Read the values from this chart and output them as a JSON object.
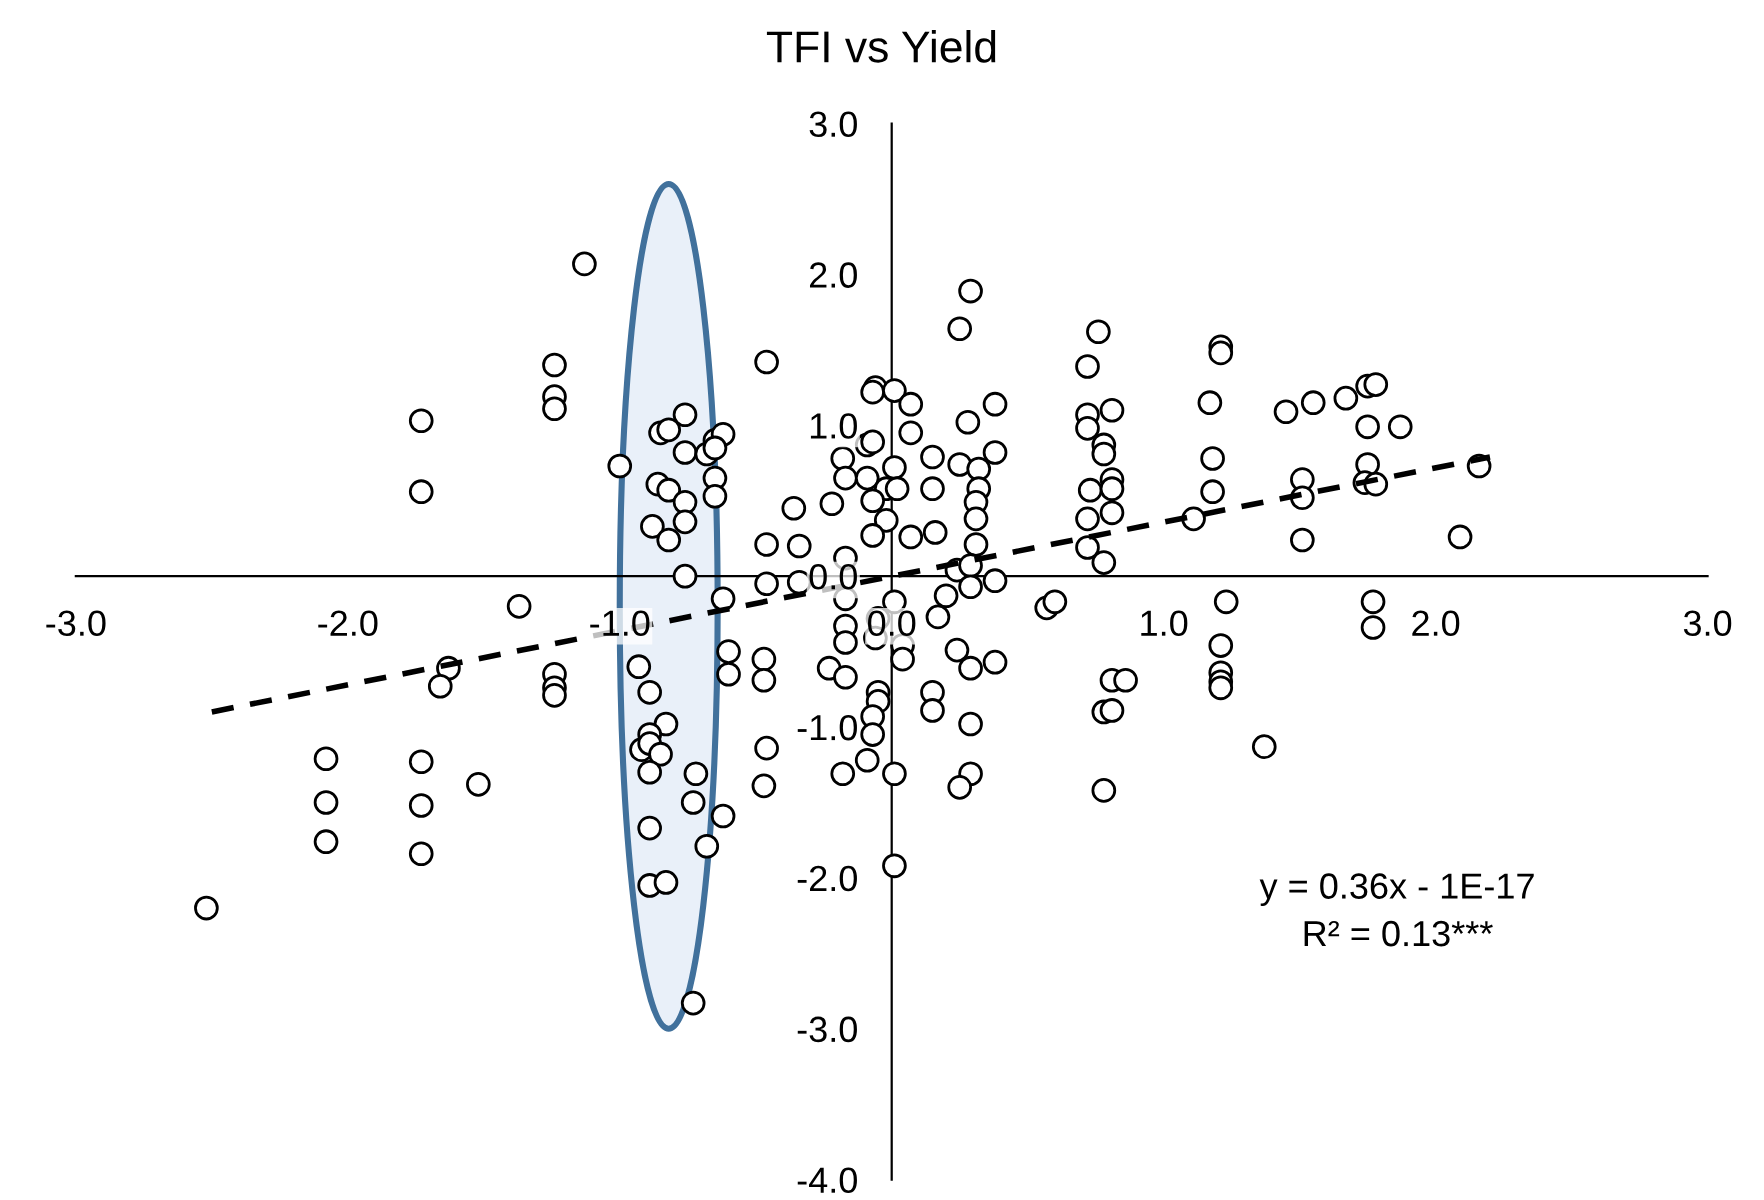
{
  "chart_data": {
    "type": "scatter",
    "title": "TFI vs Yield",
    "xlim": [
      -3,
      3
    ],
    "ylim": [
      -4,
      3
    ],
    "xticks": [
      {
        "value": -3,
        "label": "-3.0"
      },
      {
        "value": -2,
        "label": "-2.0"
      },
      {
        "value": -1,
        "label": "-1.0"
      },
      {
        "value": 0,
        "label": "0.0"
      },
      {
        "value": 1,
        "label": "1.0"
      },
      {
        "value": 2,
        "label": "2.0"
      },
      {
        "value": 3,
        "label": "3.0"
      }
    ],
    "yticks": [
      {
        "value": -4,
        "label": "-4.0"
      },
      {
        "value": -3,
        "label": "-3.0"
      },
      {
        "value": -2,
        "label": "-2.0"
      },
      {
        "value": -1,
        "label": "-1.0"
      },
      {
        "value": 0,
        "label": "0.0"
      },
      {
        "value": 1,
        "label": "1.0"
      },
      {
        "value": 2,
        "label": "2.0"
      },
      {
        "value": 3,
        "label": "3.0"
      }
    ],
    "grid": false,
    "legend": false,
    "marker": "circle",
    "series": [
      {
        "type": "scatter",
        "color": "#000000",
        "x": [
          -2.52,
          -2.08,
          -2.08,
          -2.08,
          -1.73,
          -1.73,
          -1.73,
          -1.73,
          -1.73,
          -1.63,
          -1.66,
          -1.52,
          -1.37,
          -1.24,
          -1.24,
          -1.24,
          -1.24,
          -1.24,
          -1.24,
          -1.13,
          -1.0,
          -0.76,
          -0.85,
          -0.82,
          -0.76,
          -0.68,
          -0.65,
          -0.62,
          -0.65,
          -0.86,
          -0.82,
          -0.76,
          -0.65,
          -0.65,
          -0.88,
          -0.82,
          -0.76,
          -0.76,
          -0.62,
          -0.6,
          -0.6,
          -0.93,
          -0.89,
          -0.83,
          -0.89,
          -0.92,
          -0.89,
          -0.85,
          -0.89,
          -0.72,
          -0.73,
          -0.62,
          -0.89,
          -0.68,
          -0.89,
          -0.83,
          -0.73,
          -0.46,
          -0.06,
          -0.07,
          0.01,
          0.07,
          0.29,
          0.25,
          0.38,
          0.28,
          0.07,
          -0.09,
          -0.07,
          -0.18,
          0.38,
          0.15,
          0.01,
          0.25,
          0.32,
          -0.17,
          -0.09,
          -0.02,
          0.02,
          0.15,
          0.32,
          -0.07,
          0.31,
          -0.22,
          -0.36,
          -0.02,
          0.31,
          -0.07,
          0.07,
          0.16,
          0.31,
          -0.46,
          -0.34,
          -0.17,
          0.24,
          0.29,
          0.38,
          -0.46,
          -0.34,
          -0.17,
          0.01,
          0.2,
          0.29,
          0.17,
          -0.17,
          -0.05,
          -0.17,
          -0.06,
          0.04,
          0.04,
          0.24,
          0.38,
          0.29,
          -0.47,
          -0.47,
          -0.23,
          -0.17,
          -0.05,
          -0.05,
          0.15,
          0.15,
          -0.07,
          0.29,
          -0.07,
          -0.46,
          -0.09,
          -0.18,
          0.01,
          0.29,
          0.25,
          -0.47,
          0.01,
          0.76,
          0.72,
          1.21,
          1.21,
          0.72,
          0.72,
          0.81,
          0.78,
          0.78,
          0.73,
          0.81,
          0.81,
          0.72,
          0.81,
          0.72,
          0.78,
          1.11,
          1.17,
          1.18,
          1.18,
          1.45,
          1.55,
          1.67,
          1.75,
          1.78,
          1.75,
          1.87,
          1.51,
          1.51,
          1.75,
          1.74,
          1.78,
          1.51,
          2.16,
          2.09,
          0.57,
          0.6,
          1.23,
          1.21,
          1.21,
          1.21,
          1.21,
          1.77,
          1.77,
          0.81,
          0.86,
          0.78,
          0.81,
          1.37,
          0.78
        ],
        "values": [
          -2.2,
          -1.21,
          -1.5,
          -1.76,
          1.03,
          0.56,
          -1.23,
          -1.52,
          -1.84,
          -0.61,
          -0.73,
          -1.38,
          -0.2,
          1.4,
          1.19,
          1.11,
          -0.65,
          -0.74,
          -0.79,
          2.07,
          0.73,
          1.07,
          0.95,
          0.97,
          0.82,
          0.81,
          0.9,
          0.94,
          0.85,
          0.61,
          0.57,
          0.49,
          0.65,
          0.53,
          0.33,
          0.24,
          0.36,
          0.0,
          -0.15,
          -0.5,
          -0.65,
          -0.6,
          -0.77,
          -0.98,
          -1.05,
          -1.15,
          -1.11,
          -1.18,
          -1.3,
          -1.31,
          -1.5,
          -1.59,
          -1.67,
          -1.79,
          -2.05,
          -2.03,
          -2.83,
          1.42,
          1.25,
          1.22,
          1.23,
          1.14,
          1.89,
          1.64,
          1.14,
          1.02,
          0.95,
          0.87,
          0.89,
          0.78,
          0.82,
          0.79,
          0.72,
          0.74,
          0.71,
          0.65,
          0.65,
          0.58,
          0.58,
          0.58,
          0.58,
          0.5,
          0.49,
          0.48,
          0.45,
          0.37,
          0.38,
          0.27,
          0.26,
          0.29,
          0.21,
          0.21,
          0.2,
          0.12,
          0.04,
          0.07,
          -0.03,
          -0.05,
          -0.04,
          -0.15,
          -0.17,
          -0.13,
          -0.07,
          -0.27,
          -0.33,
          -0.28,
          -0.44,
          -0.41,
          -0.46,
          -0.55,
          -0.49,
          -0.57,
          -0.61,
          -0.55,
          -0.69,
          -0.61,
          -0.67,
          -0.77,
          -0.83,
          -0.77,
          -0.89,
          -0.93,
          -0.98,
          -1.05,
          -1.14,
          -1.22,
          -1.31,
          -1.31,
          -1.31,
          -1.4,
          -1.39,
          -1.92,
          1.62,
          1.39,
          1.52,
          1.48,
          1.07,
          0.98,
          1.1,
          0.87,
          0.81,
          0.57,
          0.64,
          0.58,
          0.38,
          0.42,
          0.19,
          0.09,
          0.38,
          1.15,
          0.78,
          0.56,
          1.09,
          1.15,
          1.18,
          1.26,
          1.27,
          0.99,
          0.99,
          0.64,
          0.52,
          0.74,
          0.62,
          0.61,
          0.24,
          0.73,
          0.26,
          -0.21,
          -0.17,
          -0.17,
          -0.46,
          -0.64,
          -0.7,
          -0.74,
          -0.17,
          -0.34,
          -0.69,
          -0.69,
          -0.9,
          -0.89,
          -1.13,
          -1.42
        ]
      },
      {
        "type": "line",
        "color": "#000000",
        "line_style": "dashed",
        "marker": "none",
        "x": [
          -2.5,
          2.2
        ],
        "values": [
          -0.9,
          0.79
        ]
      }
    ],
    "annotations": [
      "y = 0.36x - 1E-17",
      "R² = 0.13***"
    ]
  }
}
